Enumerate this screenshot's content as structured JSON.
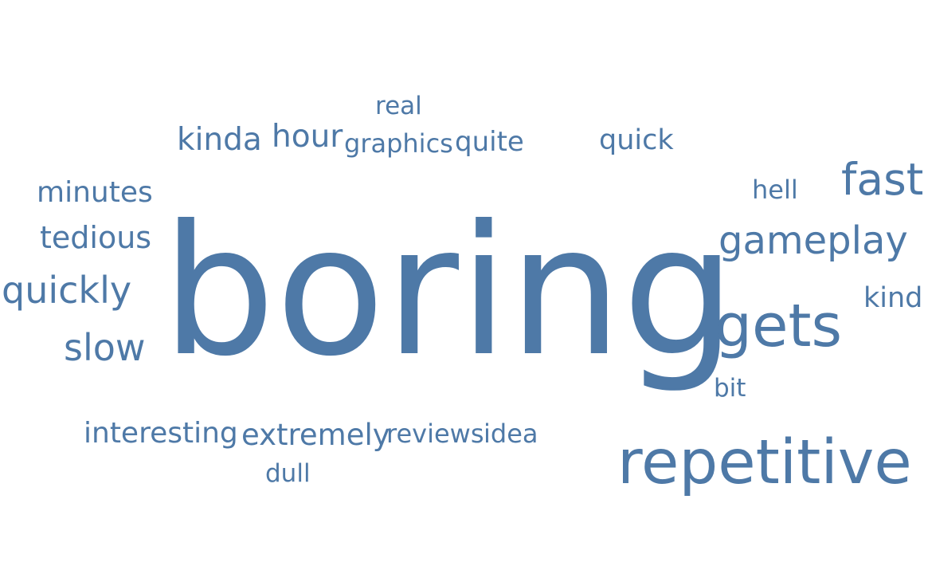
{
  "chart_data": {
    "type": "wordcloud",
    "color": "#4e79a7",
    "words": [
      {
        "text": "boring",
        "weight": 100
      },
      {
        "text": "repetitive",
        "weight": 42
      },
      {
        "text": "gets",
        "weight": 41
      },
      {
        "text": "fast",
        "weight": 31
      },
      {
        "text": "gameplay",
        "weight": 28
      },
      {
        "text": "quickly",
        "weight": 27
      },
      {
        "text": "slow",
        "weight": 27
      },
      {
        "text": "hour",
        "weight": 24
      },
      {
        "text": "kinda",
        "weight": 24
      },
      {
        "text": "tedious",
        "weight": 23
      },
      {
        "text": "minutes",
        "weight": 22
      },
      {
        "text": "extremely",
        "weight": 22
      },
      {
        "text": "interesting",
        "weight": 22
      },
      {
        "text": "quick",
        "weight": 21
      },
      {
        "text": "kind",
        "weight": 21
      },
      {
        "text": "quite",
        "weight": 20
      },
      {
        "text": "graphics",
        "weight": 19
      },
      {
        "text": "hell",
        "weight": 19
      },
      {
        "text": "reviews",
        "weight": 19
      },
      {
        "text": "idea",
        "weight": 19
      },
      {
        "text": "real",
        "weight": 18
      },
      {
        "text": "bit",
        "weight": 18
      },
      {
        "text": "dull",
        "weight": 18
      }
    ]
  }
}
